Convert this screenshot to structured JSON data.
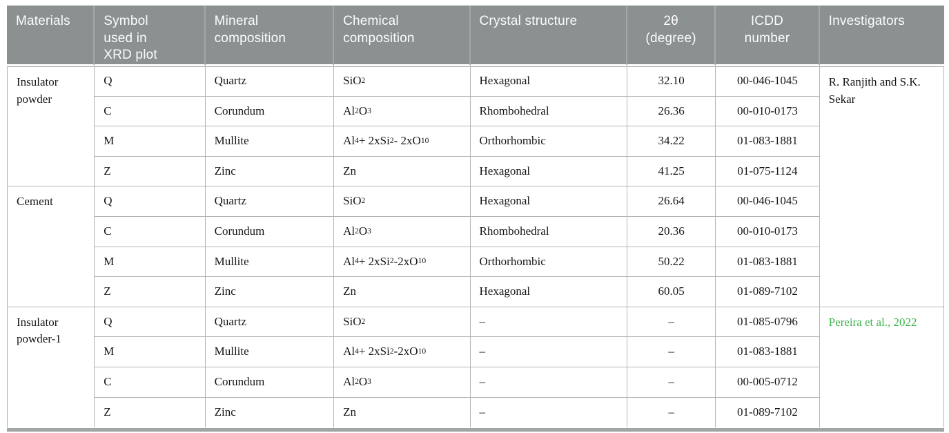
{
  "colors": {
    "header_background": "#8b9191",
    "header_text": "#fcfcfc",
    "body_text": "#161616",
    "grid_border": "#b0b5b5",
    "citation_green": "#3db44c",
    "bottom_bar": "#a0a5a5"
  },
  "table": {
    "columns": [
      {
        "label": "Materials"
      },
      {
        "label": "Symbol\nused in\nXRD plot"
      },
      {
        "label": "Mineral\ncomposition"
      },
      {
        "label": "Chemical\ncomposition"
      },
      {
        "label": "Crystal structure"
      },
      {
        "label": "2θ\n(degree)",
        "align": "center"
      },
      {
        "label": "ICDD\nnumber",
        "align": "center"
      },
      {
        "label": "Investigators"
      }
    ],
    "rows": [
      {
        "material": "Insulator powder",
        "material_rowspan": 4,
        "symbol": "Q",
        "mineral": "Quartz",
        "chemical": "SiO~2~",
        "crystal": "Hexagonal",
        "two_theta": "32.10",
        "icdd": "00-046-1045",
        "investigator": "R. Ranjith and S.K. Sekar",
        "investigator_rowspan": 8,
        "investigator_color": "black"
      },
      {
        "symbol": "C",
        "mineral": "Corundum",
        "chemical": "Al~2~O~3~",
        "crystal": "Rhombohedral",
        "two_theta": "26.36",
        "icdd": "00-010-0173"
      },
      {
        "symbol": "M",
        "mineral": "Mullite",
        "chemical": "Al~4~ + 2xSi~2~ - 2xO~10~",
        "crystal": "Orthorhombic",
        "two_theta": "34.22",
        "icdd": "01-083-1881"
      },
      {
        "symbol": "Z",
        "mineral": "Zinc",
        "chemical": "Zn",
        "crystal": "Hexagonal",
        "two_theta": "41.25",
        "icdd": "01-075-1124"
      },
      {
        "material": "Cement",
        "material_rowspan": 4,
        "symbol": "Q",
        "mineral": "Quartz",
        "chemical": "SiO~2~",
        "crystal": "Hexagonal",
        "two_theta": "26.64",
        "icdd": "00-046-1045"
      },
      {
        "symbol": "C",
        "mineral": "Corundum",
        "chemical": "Al~2~O~3~",
        "crystal": "Rhombohedral",
        "two_theta": "20.36",
        "icdd": "00-010-0173"
      },
      {
        "symbol": "M",
        "mineral": "Mullite",
        "chemical": "Al~4~ + 2xSi~2~-2xO~10~",
        "crystal": "Orthorhombic",
        "two_theta": "50.22",
        "icdd": "01-083-1881"
      },
      {
        "symbol": "Z",
        "mineral": "Zinc",
        "chemical": "Zn",
        "crystal": "Hexagonal",
        "two_theta": "60.05",
        "icdd": "01-089-7102"
      },
      {
        "material": "Insulator powder-1",
        "material_rowspan": 4,
        "symbol": "Q",
        "mineral": "Quartz",
        "chemical": "SiO~2~",
        "crystal": "–",
        "two_theta": "–",
        "icdd": "01-085-0796",
        "investigator": "Pereira et al., 2022",
        "investigator_rowspan": 4,
        "investigator_color": "green"
      },
      {
        "symbol": "M",
        "mineral": "Mullite",
        "chemical": "Al~4~ + 2xSi~2~-2xO~10~",
        "crystal": "–",
        "two_theta": "–",
        "icdd": "01-083-1881"
      },
      {
        "symbol": "C",
        "mineral": "Corundum",
        "chemical": "Al~2~O~3~",
        "crystal": "–",
        "two_theta": "–",
        "icdd": "00-005-0712"
      },
      {
        "symbol": "Z",
        "mineral": "Zinc",
        "chemical": "Zn",
        "crystal": "–",
        "two_theta": "–",
        "icdd": "01-089-7102"
      }
    ]
  }
}
